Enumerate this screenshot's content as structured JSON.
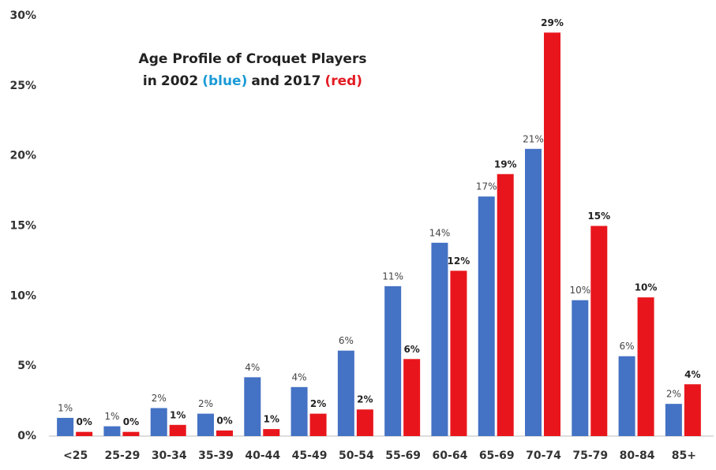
{
  "chart_data": {
    "type": "bar",
    "title": "Age Profile of Croquet Players",
    "subtitle_parts": [
      {
        "text": "in"
      },
      {
        "series": 0
      },
      {
        "text": "(blue)",
        "color": "#1a9ad6"
      },
      {
        "text": "and"
      },
      {
        "series": 1
      },
      {
        "text": "(red)",
        "color": "#e31b23"
      }
    ],
    "categories": [
      "<25",
      "25-29",
      "30-34",
      "35-39",
      "40-44",
      "45-49",
      "50-54",
      "55-69",
      "60-64",
      "65-69",
      "70-74",
      "75-79",
      "80-84",
      "85+"
    ],
    "series": [
      {
        "name": "2002",
        "color": "#4472c4",
        "values": [
          1.3,
          0.7,
          2.0,
          1.6,
          4.2,
          3.5,
          6.1,
          10.7,
          13.8,
          17.1,
          20.5,
          9.7,
          5.7,
          2.3
        ],
        "value_labels": [
          "1%",
          "1%",
          "2%",
          "2%",
          "4%",
          "4%",
          "6%",
          "11%",
          "14%",
          "17%",
          "21%",
          "10%",
          "6%",
          "2%"
        ]
      },
      {
        "name": "2017",
        "color": "#e8161c",
        "values": [
          0.3,
          0.3,
          0.8,
          0.4,
          0.5,
          1.6,
          1.9,
          5.5,
          11.8,
          18.7,
          28.8,
          15.0,
          9.9,
          3.7
        ],
        "value_labels": [
          "0%",
          "0%",
          "1%",
          "0%",
          "1%",
          "2%",
          "2%",
          "6%",
          "12%",
          "19%",
          "29%",
          "15%",
          "10%",
          "4%"
        ]
      }
    ],
    "ylim": [
      0,
      30
    ],
    "yticks": [
      {
        "value": 0,
        "label": "0%"
      },
      {
        "value": 5,
        "label": "5%"
      },
      {
        "value": 10,
        "label": "10%"
      },
      {
        "value": 15,
        "label": "15%"
      },
      {
        "value": 20,
        "label": "20%"
      },
      {
        "value": 25,
        "label": "25%"
      },
      {
        "value": 30,
        "label": "30%"
      }
    ],
    "grid": false
  }
}
